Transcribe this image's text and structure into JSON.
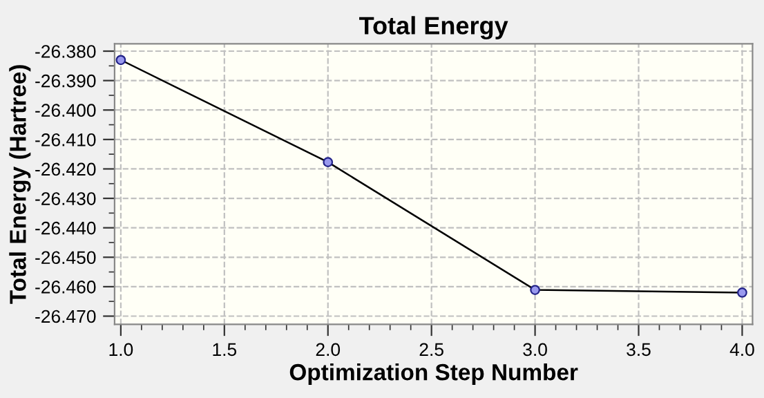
{
  "chart_data": {
    "type": "line",
    "title": "Total Energy",
    "xlabel": "Optimization Step Number",
    "ylabel": "Total Energy (Hartree)",
    "x": [
      1,
      2,
      3,
      4
    ],
    "series": [
      {
        "color": "#000000",
        "values": [
          -26.383,
          -26.4177,
          -26.4611,
          -26.462
        ]
      }
    ],
    "marker": "circle",
    "line_style": "solid",
    "grid": true,
    "xlim": [
      0.97,
      4.05
    ],
    "xticks": [
      {
        "value": 1,
        "label": "1.0"
      },
      {
        "value": 1.5,
        "label": "1.5"
      },
      {
        "value": 2,
        "label": "2.0"
      },
      {
        "value": 2.5,
        "label": "2.5"
      },
      {
        "value": 3,
        "label": "3.0"
      },
      {
        "value": 3.5,
        "label": "3.5"
      },
      {
        "value": 4,
        "label": "4.0"
      }
    ],
    "ylim": [
      -26.4728,
      -26.3775
    ],
    "yticks": [
      {
        "value": -26.38,
        "label": "-26.380"
      },
      {
        "value": -26.39,
        "label": "-26.390"
      },
      {
        "value": -26.4,
        "label": "-26.400"
      },
      {
        "value": -26.41,
        "label": "-26.410"
      },
      {
        "value": -26.42,
        "label": "-26.420"
      },
      {
        "value": -26.43,
        "label": "-26.430"
      },
      {
        "value": -26.44,
        "label": "-26.440"
      },
      {
        "value": -26.45,
        "label": "-26.450"
      },
      {
        "value": -26.46,
        "label": "-26.460"
      },
      {
        "value": -26.47,
        "label": "-26.470"
      }
    ]
  }
}
